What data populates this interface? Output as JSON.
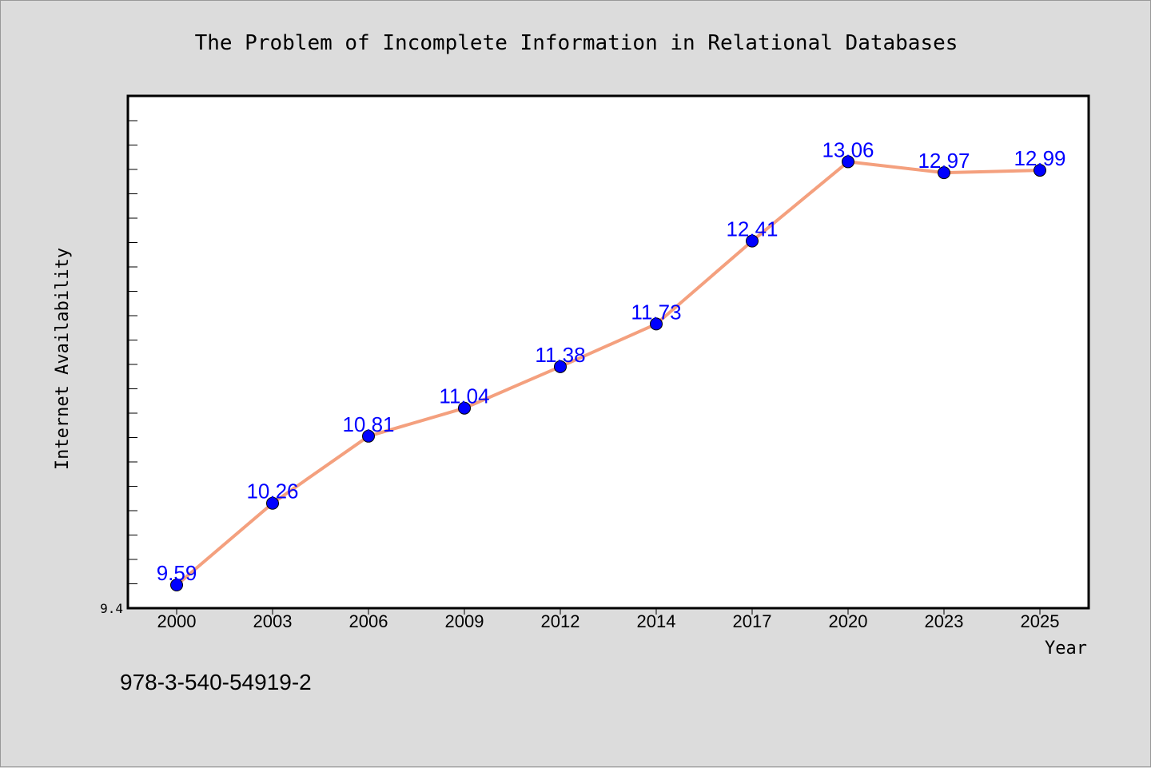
{
  "chart_data": {
    "type": "line",
    "title": "The Problem of Incomplete Information in Relational Databases",
    "xlabel": "Year",
    "ylabel": "Internet Availability",
    "categories": [
      "2000",
      "2003",
      "2006",
      "2009",
      "2012",
      "2014",
      "2017",
      "2020",
      "2023",
      "2025"
    ],
    "series": [
      {
        "values": [
          9.59,
          10.26,
          10.81,
          11.04,
          11.38,
          11.73,
          12.41,
          13.06,
          12.97,
          12.99
        ],
        "labels": [
          "9.59",
          "10.26",
          "10.81",
          "11.04",
          "11.38",
          "11.73",
          "12.41",
          "13.06",
          "12.97",
          "12.99"
        ],
        "line_color": "#f4a07e",
        "marker_color": "#0000ff"
      }
    ],
    "ylim": [
      9.4,
      13.6
    ],
    "yticks_labeled": [
      "9.4"
    ],
    "grid": false,
    "legend": "none"
  },
  "footer_text": "978-3-540-54919-2",
  "colors": {
    "background": "#dcdcdc",
    "plot_background": "#ffffff",
    "line": "#f4a07e",
    "marker": "#0000ff",
    "data_label": "#0000ff"
  }
}
